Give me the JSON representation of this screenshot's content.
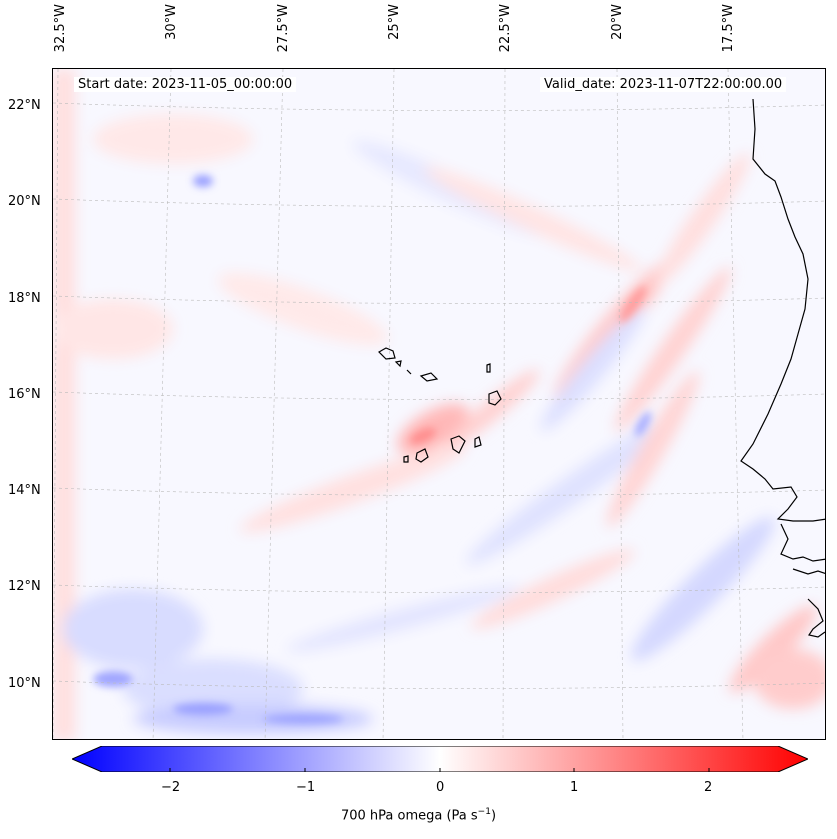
{
  "map": {
    "header": {
      "start_date": "Start date: 2023-11-05_00:00:00",
      "valid_date": "Valid_date: 2023-11-07T22:00:00.00"
    },
    "lon_labels": [
      "32.5°W",
      "30°W",
      "27.5°W",
      "25°W",
      "22.5°W",
      "20°W",
      "17.5°W"
    ],
    "lat_labels": [
      "22°N",
      "20°N",
      "18°N",
      "16°N",
      "14°N",
      "12°N",
      "10°N"
    ],
    "colorbar": {
      "label": "700 hPa omega (Pa s",
      "label_sup": "−1",
      "label_close": ")",
      "ticks": [
        "−2",
        "−1",
        "0",
        "1",
        "2"
      ],
      "range": [
        -2.75,
        2.75
      ],
      "low_color": "#0000ff",
      "mid_color": "#ffffff",
      "high_color": "#ff0000"
    }
  }
}
